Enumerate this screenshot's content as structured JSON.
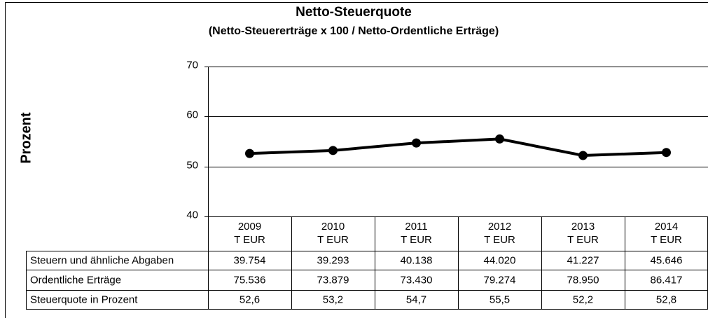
{
  "chart_data": {
    "type": "line",
    "title": "Netto-Steuerquote",
    "subtitle": "(Netto-Steuererträge x 100 / Netto-Ordentliche Erträge)",
    "y_label": "Prozent",
    "categories": [
      "2009",
      "2010",
      "2011",
      "2012",
      "2013",
      "2014"
    ],
    "category_unit": "T EUR",
    "series": [
      {
        "name": "Steuerquote in Prozent",
        "color": "#000000",
        "values": [
          52.6,
          53.2,
          54.7,
          55.5,
          52.2,
          52.8
        ],
        "value_labels": [
          "52,6",
          "53,2",
          "54,7",
          "55,5",
          "52,2",
          "52,8"
        ]
      }
    ],
    "table_rows": [
      {
        "name": "Steuern und ähnliche Abgaben",
        "values": [
          "39.754",
          "39.293",
          "40.138",
          "44.020",
          "41.227",
          "45.646"
        ]
      },
      {
        "name": "Ordentliche Erträge",
        "values": [
          "75.536",
          "73.879",
          "73.430",
          "79.274",
          "78.950",
          "86.417"
        ]
      }
    ],
    "ylim": [
      40,
      70
    ],
    "yticks": [
      40,
      50,
      60,
      70
    ],
    "grid": true
  }
}
